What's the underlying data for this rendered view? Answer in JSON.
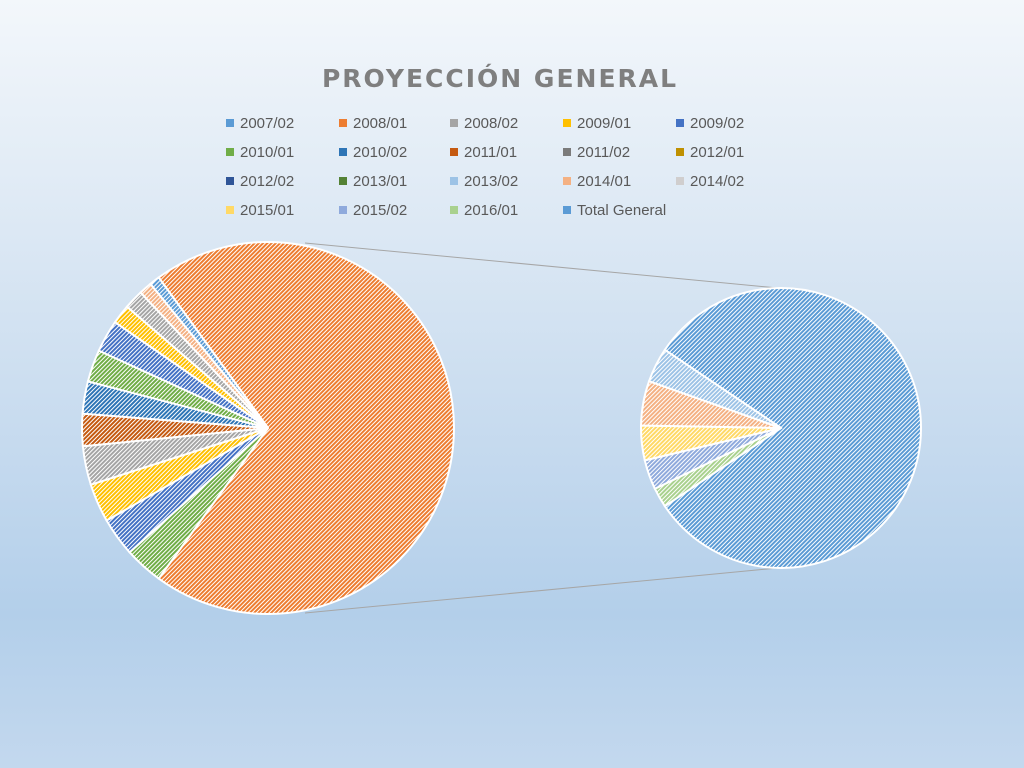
{
  "chart_data": {
    "type": "pie",
    "subtype": "pie-of-pie",
    "title": "PROYECCIÓN GENERAL",
    "legend_position": "top",
    "legend": [
      "2007/02",
      "2008/01",
      "2008/02",
      "2009/01",
      "2009/02",
      "2010/01",
      "2010/02",
      "2011/01",
      "2011/02",
      "2012/01",
      "2012/02",
      "2013/01",
      "2013/02",
      "2014/01",
      "2014/02",
      "2015/01",
      "2015/02",
      "2016/01",
      "Total General"
    ],
    "colors": {
      "2007/02": "#5b9bd5",
      "2008/01": "#ed7d31",
      "2008/02": "#a5a5a5",
      "2009/01": "#ffc000",
      "2009/02": "#4472c4",
      "2010/01": "#70ad47",
      "2010/02": "#2e75b6",
      "2011/01": "#c55a11",
      "2011/02": "#7b7b7b",
      "2012/01": "#bf9000",
      "2012/02": "#2f5597",
      "2013/01": "#548235",
      "2013/02": "#9dc3e6",
      "2014/01": "#f4b183",
      "2014/02": "#d0cece",
      "2015/01": "#ffd966",
      "2015/02": "#8faadc",
      "2016/01": "#a9d18e",
      "Total General": "#5b9bd5"
    },
    "primary_pie": [
      {
        "label": "2008/01",
        "value": 62.5
      },
      {
        "label": "2010/01",
        "value": 3.0
      },
      {
        "label": "2009/02",
        "value": 3.0
      },
      {
        "label": "2009/01",
        "value": 3.0
      },
      {
        "label": "2008/02",
        "value": 3.0
      },
      {
        "label": "2011/01",
        "value": 2.5
      },
      {
        "label": "2010/02",
        "value": 2.5
      },
      {
        "label": "2010/01",
        "value": 2.5
      },
      {
        "label": "2009/02",
        "value": 2.5
      },
      {
        "label": "2009/01",
        "value": 1.5
      },
      {
        "label": "2008/02",
        "value": 1.5
      },
      {
        "label": "2014/01",
        "value": 1.0
      },
      {
        "label": "2007/02",
        "value": 0.8
      }
    ],
    "secondary_pie": [
      {
        "label": "Total General",
        "value": 71.0
      },
      {
        "label": "2016/01",
        "value": 2.0
      },
      {
        "label": "2015/02",
        "value": 3.0
      },
      {
        "label": "2015/01",
        "value": 3.5
      },
      {
        "label": "2014/01",
        "value": 4.5
      },
      {
        "label": "2013/02",
        "value": 3.5
      }
    ]
  }
}
